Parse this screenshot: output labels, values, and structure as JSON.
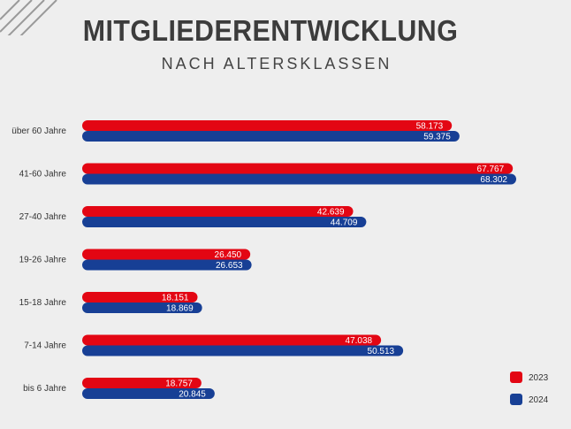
{
  "chart_data": {
    "type": "bar",
    "orientation": "horizontal",
    "title": "MITGLIEDERENTWICKLUNG",
    "subtitle": "NACH ALTERSKLASSEN",
    "categories": [
      "über 60 Jahre",
      "41-60 Jahre",
      "27-40 Jahre",
      "19-26 Jahre",
      "15-18 Jahre",
      "7-14 Jahre",
      "bis 6 Jahre"
    ],
    "series": [
      {
        "name": "2023",
        "color": "#e30613",
        "values": [
          58173,
          67767,
          42639,
          26450,
          18151,
          47038,
          18757
        ],
        "labels": [
          "58.173",
          "67.767",
          "42.639",
          "26.450",
          "18.151",
          "47.038",
          "18.757"
        ]
      },
      {
        "name": "2024",
        "color": "#173f95",
        "values": [
          59375,
          68302,
          44709,
          26653,
          18869,
          50513,
          20845
        ],
        "labels": [
          "59.375",
          "68.302",
          "44.709",
          "26.653",
          "18.869",
          "50.513",
          "20.845"
        ]
      }
    ],
    "xlim": [
      0,
      68302
    ],
    "legend": "bottom-right",
    "grid": false
  }
}
